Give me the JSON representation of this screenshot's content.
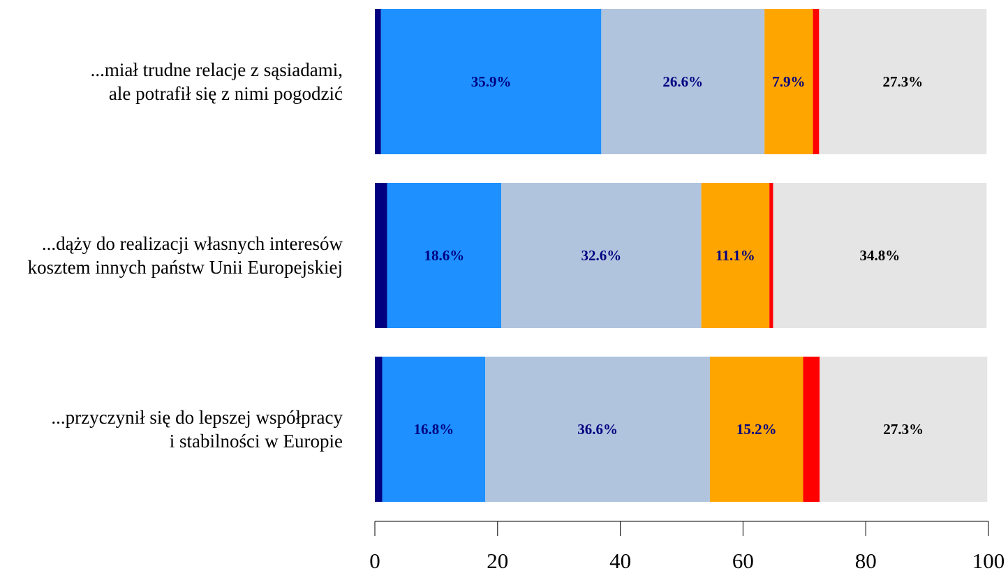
{
  "chart_data": {
    "type": "bar",
    "orientation": "horizontal",
    "stacked": true,
    "categories": [
      [
        "...miał trudne relacje z sąsiadami,",
        "ale potrafił się z nimi pogodzić"
      ],
      [
        "...dąży do realizacji własnych interesów",
        "kosztem innych państw Unii Europejskiej"
      ],
      [
        "...przyczynił się do lepszej współpracy",
        "i stabilności w Europie"
      ]
    ],
    "series": [
      {
        "color": "#000080",
        "values": [
          1.0,
          2.0,
          1.2
        ],
        "labels": [
          "",
          "",
          ""
        ],
        "label_color": "#000080"
      },
      {
        "color": "#1E90FF",
        "values": [
          35.9,
          18.6,
          16.8
        ],
        "labels": [
          "35.9%",
          "18.6%",
          "16.8%"
        ],
        "label_color": "#000080"
      },
      {
        "color": "#B0C4DE",
        "values": [
          26.6,
          32.6,
          36.6
        ],
        "labels": [
          "26.6%",
          "32.6%",
          "36.6%"
        ],
        "label_color": "#000080"
      },
      {
        "color": "#FFA500",
        "values": [
          7.9,
          11.1,
          15.2
        ],
        "labels": [
          "7.9%",
          "11.1%",
          "15.2%"
        ],
        "label_color": "#000080"
      },
      {
        "color": "#FF0000",
        "values": [
          1.0,
          0.6,
          2.7
        ],
        "labels": [
          "",
          "",
          ""
        ],
        "label_color": "#000080"
      },
      {
        "color": "#E5E5E5",
        "values": [
          27.3,
          34.8,
          27.3
        ],
        "labels": [
          "27.3%",
          "34.8%",
          "27.3%"
        ],
        "label_color": "#000000"
      }
    ],
    "xlim": [
      0,
      100
    ],
    "xticks": [
      "0",
      "20",
      "40",
      "60",
      "80",
      "100"
    ],
    "title": "",
    "xlabel": "",
    "ylabel": "",
    "grid": false,
    "legend": "none"
  }
}
